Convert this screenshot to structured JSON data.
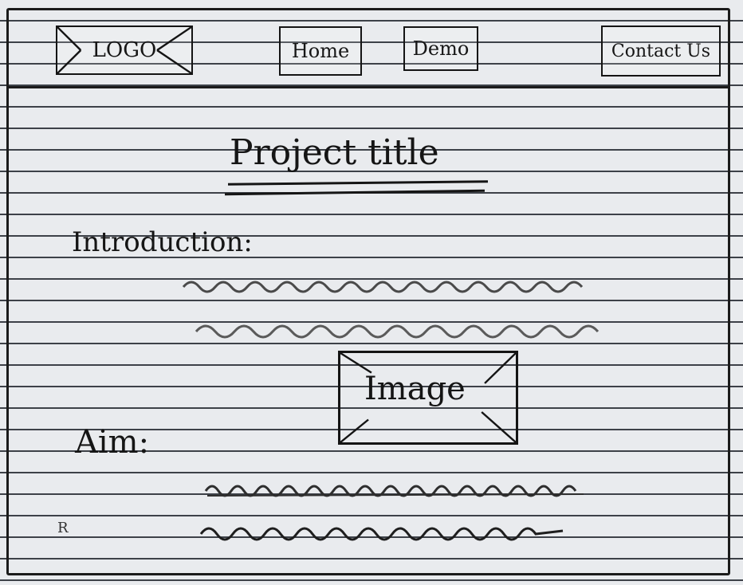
{
  "nav": {
    "logo_label": "LOGO",
    "home_label": "Home",
    "demo_label": "Demo",
    "contact_label": "Contact Us"
  },
  "main": {
    "title": "Project title",
    "intro_label": "Introduction:",
    "image_label": "Image",
    "aim_label": "Aim:"
  },
  "margin_mark": "R"
}
